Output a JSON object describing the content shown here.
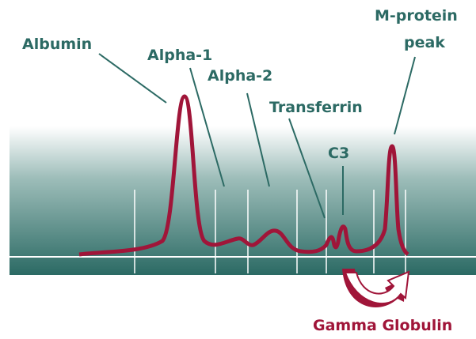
{
  "labels": [
    "Albumin",
    "Alpha-1",
    "Alpha-2",
    "Transferrin",
    "C3"
  ],
  "m_protein_label": [
    "M-protein",
    "peak"
  ],
  "gamma_label": "Gamma Globulin"
}
